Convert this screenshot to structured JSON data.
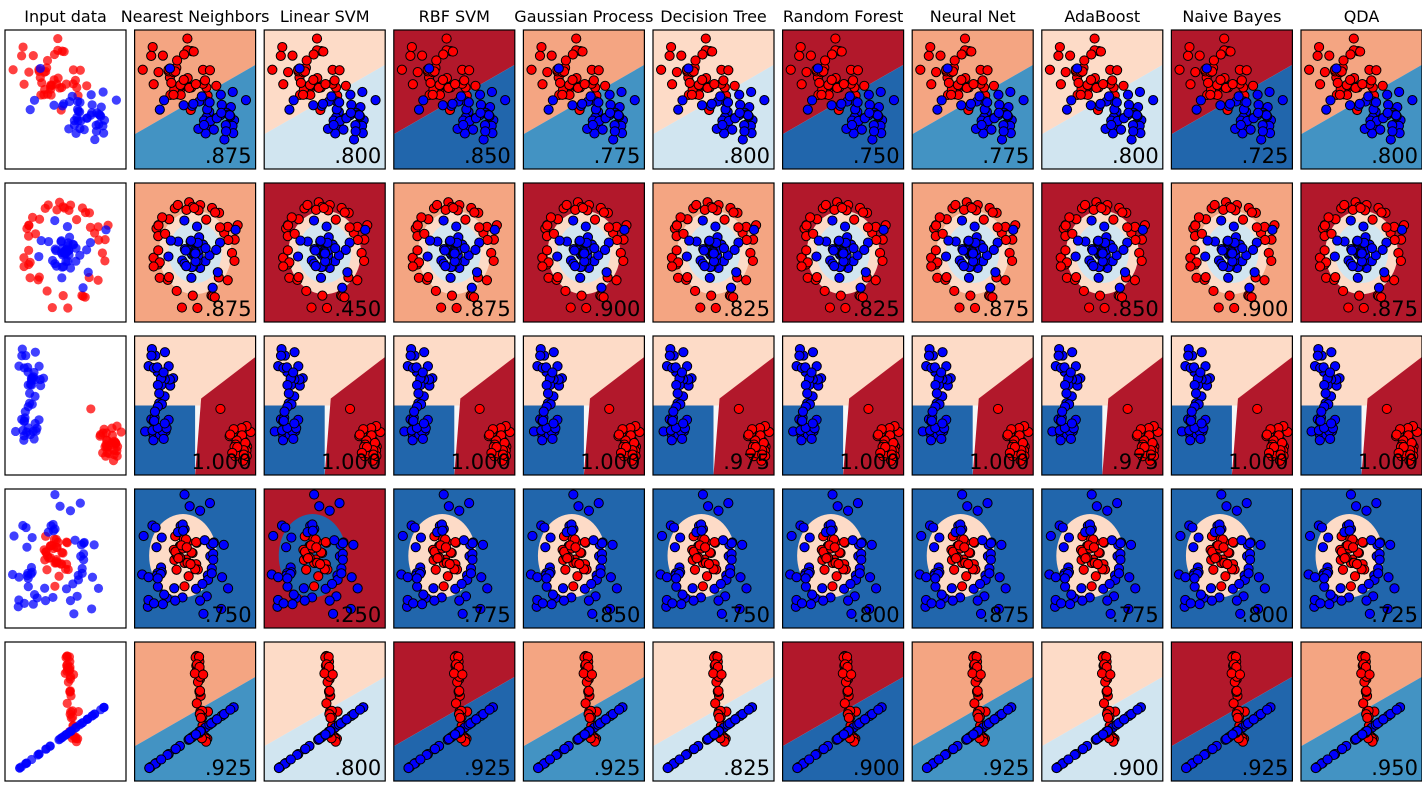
{
  "chart_data": {
    "type": "scatter",
    "title": "",
    "grid": false,
    "colors": {
      "class_red": "#ff0000",
      "class_blue": "#0000ff",
      "region_red": "#b2182b",
      "region_red_light": "#f4a582",
      "region_pale": "#fddbc7",
      "region_neutral": "#f7f7f7",
      "region_blue_light": "#d1e5f0",
      "region_blue_mid": "#4393c3",
      "region_blue": "#2166ac"
    },
    "columns": [
      "Input data",
      "Nearest Neighbors",
      "Linear SVM",
      "RBF SVM",
      "Gaussian Process",
      "Decision Tree",
      "Random Forest",
      "Neural Net",
      "AdaBoost",
      "Naive Bayes",
      "QDA"
    ],
    "rows": [
      {
        "dataset": "moons",
        "scores": [
          ".875",
          ".800",
          ".850",
          ".775",
          ".800",
          ".750",
          ".775",
          ".800",
          ".725",
          ".800"
        ]
      },
      {
        "dataset": "circles",
        "scores": [
          ".875",
          ".450",
          ".875",
          ".900",
          ".825",
          ".825",
          ".875",
          ".850",
          ".900",
          ".875"
        ]
      },
      {
        "dataset": "blobs",
        "scores": [
          "1.000",
          "1.000",
          "1.000",
          "1.000",
          ".975",
          "1.000",
          "1.000",
          ".975",
          "1.000",
          "1.000"
        ]
      },
      {
        "dataset": "ring",
        "scores": [
          ".750",
          ".250",
          ".775",
          ".850",
          ".750",
          ".800",
          ".875",
          ".775",
          ".800",
          ".725"
        ]
      },
      {
        "dataset": "cross",
        "scores": [
          ".925",
          ".800",
          ".925",
          ".925",
          ".825",
          ".900",
          ".925",
          ".900",
          ".925",
          ".950"
        ]
      }
    ]
  }
}
